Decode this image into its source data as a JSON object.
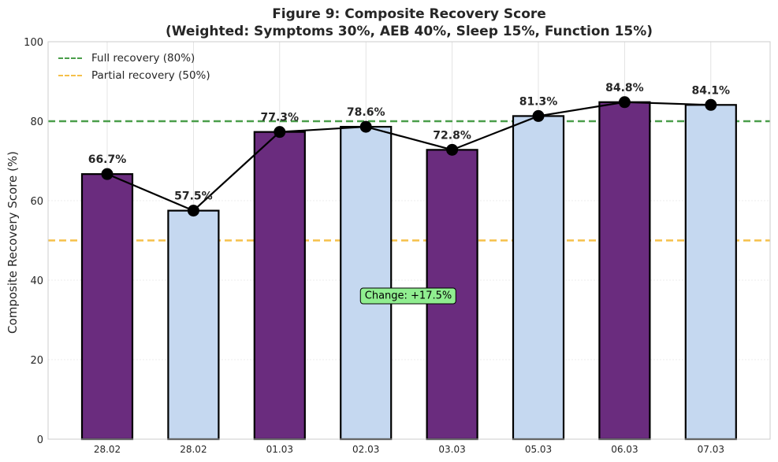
{
  "chart_data": {
    "type": "bar",
    "title_line1": "Figure 9: Composite Recovery Score",
    "title_line2": "(Weighted: Symptoms 30%, AEB 40%, Sleep 15%, Function 15%)",
    "xlabel": "",
    "ylabel": "Composite Recovery Score (%)",
    "ylim": [
      0,
      100
    ],
    "yticks": [
      0,
      20,
      40,
      60,
      80,
      100
    ],
    "grid": true,
    "categories": [
      "28.02",
      "28.02",
      "01.03",
      "02.03",
      "03.03",
      "05.03",
      "06.03",
      "07.03"
    ],
    "values": [
      66.7,
      57.5,
      77.3,
      78.6,
      72.8,
      81.3,
      84.8,
      84.1
    ],
    "value_labels": [
      "66.7%",
      "57.5%",
      "77.3%",
      "78.6%",
      "72.8%",
      "81.3%",
      "84.8%",
      "84.1%"
    ],
    "bar_colors": [
      "#6a2c7e",
      "#c5d8f0",
      "#6a2c7e",
      "#c5d8f0",
      "#6a2c7e",
      "#c5d8f0",
      "#6a2c7e",
      "#c5d8f0"
    ],
    "line_overlay": true,
    "reference_lines": [
      {
        "label": "Full recovery (80%)",
        "value": 80,
        "color": "#4a9e4a"
      },
      {
        "label": "Partial recovery (50%)",
        "value": 50,
        "color": "#f5c04a"
      }
    ],
    "legend_position": "top-left",
    "annotation": {
      "text": "Change: +17.5%",
      "color": "#90ee90"
    }
  }
}
